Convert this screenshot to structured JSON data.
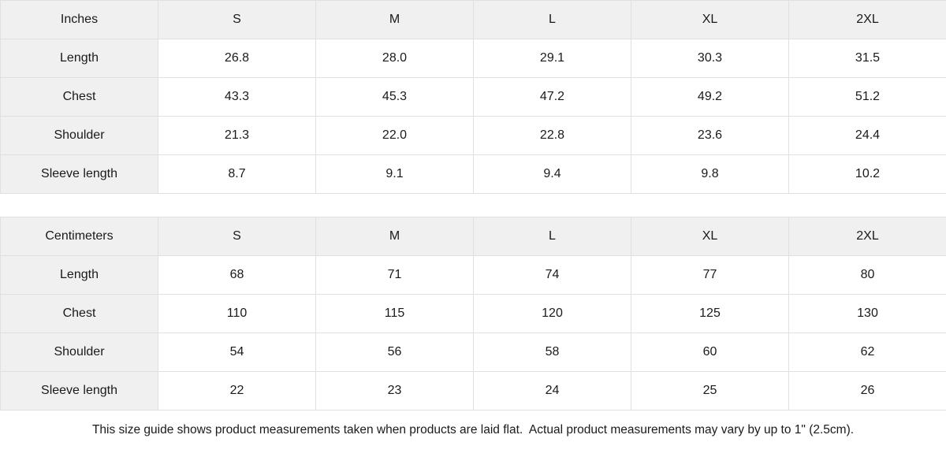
{
  "chart_data": [
    {
      "type": "table",
      "unit_label": "Inches",
      "columns": [
        "S",
        "M",
        "L",
        "XL",
        "2XL"
      ],
      "rows": [
        {
          "label": "Length",
          "values": [
            "26.8",
            "28.0",
            "29.1",
            "30.3",
            "31.5"
          ]
        },
        {
          "label": "Chest",
          "values": [
            "43.3",
            "45.3",
            "47.2",
            "49.2",
            "51.2"
          ]
        },
        {
          "label": "Shoulder",
          "values": [
            "21.3",
            "22.0",
            "22.8",
            "23.6",
            "24.4"
          ]
        },
        {
          "label": "Sleeve length",
          "values": [
            "8.7",
            "9.1",
            "9.4",
            "9.8",
            "10.2"
          ]
        }
      ]
    },
    {
      "type": "table",
      "unit_label": "Centimeters",
      "columns": [
        "S",
        "M",
        "L",
        "XL",
        "2XL"
      ],
      "rows": [
        {
          "label": "Length",
          "values": [
            "68",
            "71",
            "74",
            "77",
            "80"
          ]
        },
        {
          "label": "Chest",
          "values": [
            "110",
            "115",
            "120",
            "125",
            "130"
          ]
        },
        {
          "label": "Shoulder",
          "values": [
            "54",
            "56",
            "58",
            "60",
            "62"
          ]
        },
        {
          "label": "Sleeve length",
          "values": [
            "22",
            "23",
            "24",
            "25",
            "26"
          ]
        }
      ]
    }
  ],
  "footer_note": "This size guide shows product measurements taken when products are laid flat.  Actual product measurements may vary by up to 1\" (2.5cm).",
  "colors": {
    "header_bg": "#f0f0f0",
    "border": "#e0e0e0",
    "text": "#1a1a1a"
  }
}
